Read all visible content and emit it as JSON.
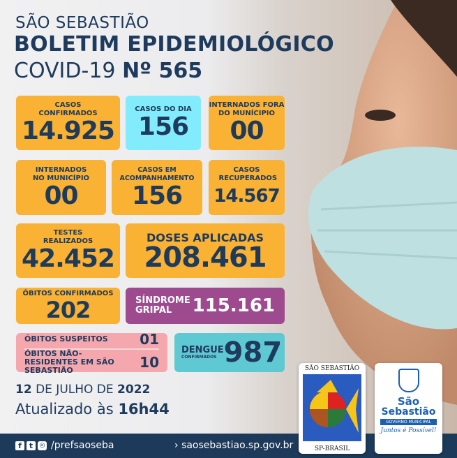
{
  "header": {
    "city": "SÃO SEBASTIÃO",
    "title": "BOLETIM EPIDEMIOLÓGICO",
    "subtitle_prefix": "COVID-19",
    "number": "Nº 565"
  },
  "stats": {
    "casos_confirmados": {
      "label": "CASOS CONFIRMADOS",
      "value": "14.925"
    },
    "casos_do_dia": {
      "label": "CASOS DO DIA",
      "value": "156"
    },
    "internados_fora": {
      "label": "INTERNADOS FORA DO MUNÍCIPIO",
      "value": "00"
    },
    "internados_municipio": {
      "label": "INTERNADOS NO MUNICÍPIO",
      "value": "00"
    },
    "casos_acompanhamento": {
      "label": "CASOS EM ACOMPANHAMENTO",
      "value": "156"
    },
    "casos_recuperados": {
      "label": "CASOS RECUPERADOS",
      "value": "14.567"
    },
    "testes": {
      "label": "TESTES REALIZADOS",
      "value": "42.452"
    },
    "doses": {
      "label": "DOSES APLICADAS",
      "value": "208.461"
    },
    "obitos": {
      "label": "ÓBITOS CONFIRMADOS",
      "value": "202"
    },
    "sindrome": {
      "label": "SÍNDROME GRIPAL",
      "value": "115.161"
    },
    "obitos_suspeitos": {
      "label": "ÓBITOS SUSPEITOS",
      "value": "01"
    },
    "obitos_nao_residentes": {
      "label": "ÓBITOS NÃO-RESIDENTES EM SÃO SEBASTIÃO",
      "value": "10"
    },
    "dengue": {
      "label": "DENGUE",
      "sublabel": "CONFIRMADOS",
      "value": "987"
    }
  },
  "date": {
    "day": "12",
    "middle": " DE JULHO DE ",
    "year": "2022",
    "updated_prefix": "Atualizado às ",
    "time": "16h44"
  },
  "footer": {
    "social": "/prefsaoseba",
    "site": "saosebastiao.sp.gov.br"
  },
  "logos": {
    "fish": {
      "top": "SÃO SEBASTIÃO",
      "bottom": "SP-BRASIL"
    },
    "gov": {
      "name1": "São",
      "name2": "Sebastião",
      "badge": "GOVERNO MUNICIPAL",
      "slogan": "Juntos é Possível!"
    }
  },
  "colors": {
    "navy": "#1e3a5c",
    "orange": "#f9b233",
    "cyan": "#82ecfc",
    "purple": "#9d4a8e",
    "pink": "#f4a8ae",
    "teal": "#5ec8d3"
  }
}
